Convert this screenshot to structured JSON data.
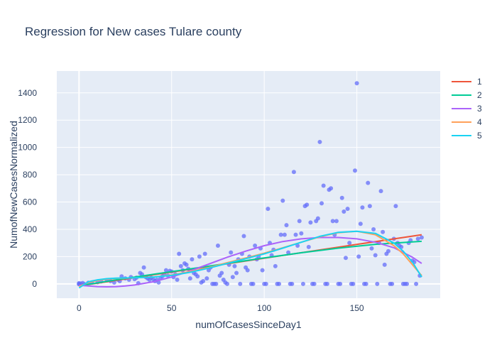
{
  "chart_data": {
    "type": "scatter",
    "title": "Regression for New cases Tulare county",
    "xlabel": "numOfCasesSinceDay1",
    "ylabel": "NumofNewCasesNormalized",
    "xlim": [
      -12,
      195
    ],
    "ylim": [
      -105,
      1560
    ],
    "x_ticks": [
      0,
      50,
      100,
      150
    ],
    "y_ticks": [
      0,
      200,
      400,
      600,
      800,
      1000,
      1200,
      1400
    ],
    "grid": true,
    "legend_position": "right",
    "scatter_points": [
      [
        0,
        0
      ],
      [
        0,
        5
      ],
      [
        0,
        -3
      ],
      [
        1,
        2
      ],
      [
        2,
        6
      ],
      [
        3,
        -2
      ],
      [
        5,
        8
      ],
      [
        7,
        10
      ],
      [
        10,
        12
      ],
      [
        12,
        18
      ],
      [
        15,
        25
      ],
      [
        17,
        20
      ],
      [
        19,
        10
      ],
      [
        21,
        30
      ],
      [
        22,
        20
      ],
      [
        23,
        55
      ],
      [
        25,
        40
      ],
      [
        27,
        30
      ],
      [
        28,
        50
      ],
      [
        30,
        35
      ],
      [
        31,
        45
      ],
      [
        32,
        5
      ],
      [
        33,
        80
      ],
      [
        34,
        70
      ],
      [
        35,
        120
      ],
      [
        36,
        50
      ],
      [
        37,
        40
      ],
      [
        38,
        30
      ],
      [
        39,
        45
      ],
      [
        40,
        35
      ],
      [
        41,
        20
      ],
      [
        42,
        30
      ],
      [
        43,
        10
      ],
      [
        44,
        40
      ],
      [
        45,
        55
      ],
      [
        46,
        70
      ],
      [
        47,
        100
      ],
      [
        48,
        60
      ],
      [
        49,
        95
      ],
      [
        50,
        90
      ],
      [
        51,
        50
      ],
      [
        52,
        70
      ],
      [
        53,
        30
      ],
      [
        54,
        220
      ],
      [
        55,
        130
      ],
      [
        56,
        100
      ],
      [
        57,
        150
      ],
      [
        58,
        140
      ],
      [
        59,
        110
      ],
      [
        60,
        40
      ],
      [
        61,
        180
      ],
      [
        62,
        80
      ],
      [
        63,
        70
      ],
      [
        64,
        55
      ],
      [
        65,
        200
      ],
      [
        66,
        10
      ],
      [
        67,
        20
      ],
      [
        68,
        220
      ],
      [
        69,
        40
      ],
      [
        70,
        100
      ],
      [
        71,
        120
      ],
      [
        72,
        0
      ],
      [
        73,
        0
      ],
      [
        74,
        0
      ],
      [
        75,
        280
      ],
      [
        76,
        60
      ],
      [
        77,
        80
      ],
      [
        78,
        30
      ],
      [
        79,
        10
      ],
      [
        80,
        0
      ],
      [
        81,
        140
      ],
      [
        82,
        230
      ],
      [
        83,
        50
      ],
      [
        84,
        130
      ],
      [
        85,
        80
      ],
      [
        86,
        180
      ],
      [
        87,
        0
      ],
      [
        88,
        220
      ],
      [
        89,
        350
      ],
      [
        90,
        120
      ],
      [
        91,
        100
      ],
      [
        92,
        200
      ],
      [
        93,
        0
      ],
      [
        94,
        0
      ],
      [
        95,
        280
      ],
      [
        96,
        180
      ],
      [
        97,
        200
      ],
      [
        98,
        260
      ],
      [
        99,
        100
      ],
      [
        100,
        0
      ],
      [
        101,
        0
      ],
      [
        102,
        550
      ],
      [
        103,
        300
      ],
      [
        104,
        210
      ],
      [
        105,
        250
      ],
      [
        106,
        130
      ],
      [
        107,
        0
      ],
      [
        108,
        0
      ],
      [
        109,
        360
      ],
      [
        110,
        610
      ],
      [
        111,
        360
      ],
      [
        112,
        430
      ],
      [
        113,
        230
      ],
      [
        114,
        0
      ],
      [
        115,
        0
      ],
      [
        116,
        820
      ],
      [
        117,
        360
      ],
      [
        118,
        280
      ],
      [
        119,
        460
      ],
      [
        120,
        370
      ],
      [
        121,
        0
      ],
      [
        122,
        570
      ],
      [
        123,
        580
      ],
      [
        124,
        270
      ],
      [
        125,
        450
      ],
      [
        126,
        0
      ],
      [
        127,
        0
      ],
      [
        128,
        460
      ],
      [
        129,
        480
      ],
      [
        130,
        1040
      ],
      [
        131,
        590
      ],
      [
        132,
        720
      ],
      [
        133,
        0
      ],
      [
        134,
        0
      ],
      [
        135,
        690
      ],
      [
        136,
        700
      ],
      [
        137,
        460
      ],
      [
        138,
        360
      ],
      [
        139,
        460
      ],
      [
        140,
        0
      ],
      [
        141,
        0
      ],
      [
        142,
        630
      ],
      [
        143,
        530
      ],
      [
        144,
        190
      ],
      [
        145,
        550
      ],
      [
        146,
        300
      ],
      [
        147,
        0
      ],
      [
        148,
        0
      ],
      [
        149,
        830
      ],
      [
        150,
        1470
      ],
      [
        151,
        200
      ],
      [
        152,
        440
      ],
      [
        153,
        560
      ],
      [
        154,
        0
      ],
      [
        155,
        0
      ],
      [
        156,
        740
      ],
      [
        157,
        570
      ],
      [
        158,
        260
      ],
      [
        159,
        400
      ],
      [
        160,
        210
      ],
      [
        161,
        0
      ],
      [
        162,
        300
      ],
      [
        163,
        680
      ],
      [
        164,
        380
      ],
      [
        165,
        140
      ],
      [
        166,
        220
      ],
      [
        167,
        240
      ],
      [
        168,
        0
      ],
      [
        169,
        0
      ],
      [
        170,
        330
      ],
      [
        171,
        570
      ],
      [
        172,
        300
      ],
      [
        173,
        280
      ],
      [
        174,
        270
      ],
      [
        175,
        0
      ],
      [
        176,
        0
      ],
      [
        177,
        0
      ],
      [
        178,
        300
      ],
      [
        179,
        320
      ],
      [
        180,
        170
      ],
      [
        181,
        160
      ],
      [
        182,
        0
      ],
      [
        183,
        330
      ],
      [
        184,
        60
      ],
      [
        185,
        340
      ]
    ],
    "scatter_color": "#636efa",
    "series": [
      {
        "name": "1",
        "color": "#ef553b",
        "x": [
          0,
          185
        ],
        "y": [
          -15,
          360
        ]
      },
      {
        "name": "2",
        "color": "#00cc96",
        "x": [
          0,
          20,
          40,
          60,
          80,
          100,
          120,
          140,
          160,
          185
        ],
        "y": [
          -15,
          30,
          70,
          110,
          150,
          190,
          228,
          262,
          290,
          312
        ]
      },
      {
        "name": "3",
        "color": "#ab63fa",
        "x": [
          0,
          5,
          10,
          15,
          20,
          25,
          30,
          40,
          50,
          60,
          70,
          80,
          90,
          100,
          110,
          120,
          130,
          140,
          150,
          160,
          170,
          180,
          185
        ],
        "y": [
          -10,
          -15,
          -20,
          -22,
          -20,
          -15,
          -8,
          15,
          50,
          95,
          145,
          195,
          240,
          280,
          310,
          330,
          340,
          340,
          330,
          305,
          265,
          195,
          150
        ]
      },
      {
        "name": "4",
        "color": "#ffa15a",
        "x": [
          0,
          5,
          10,
          15,
          20,
          30,
          40,
          50,
          60,
          70,
          80,
          90,
          100,
          110,
          120,
          130,
          140,
          150,
          160,
          170,
          175,
          180,
          185
        ],
        "y": [
          -20,
          10,
          25,
          35,
          40,
          45,
          50,
          65,
          90,
          120,
          155,
          190,
          225,
          265,
          305,
          345,
          375,
          385,
          360,
          280,
          220,
          140,
          60
        ]
      },
      {
        "name": "5",
        "color": "#19d3f3",
        "x": [
          0,
          5,
          10,
          15,
          20,
          30,
          40,
          50,
          60,
          70,
          80,
          90,
          100,
          110,
          120,
          130,
          140,
          150,
          160,
          170,
          175,
          180,
          185
        ],
        "y": [
          -30,
          15,
          30,
          38,
          42,
          45,
          50,
          62,
          85,
          115,
          150,
          185,
          220,
          262,
          305,
          348,
          378,
          385,
          370,
          300,
          240,
          160,
          50
        ]
      }
    ]
  }
}
